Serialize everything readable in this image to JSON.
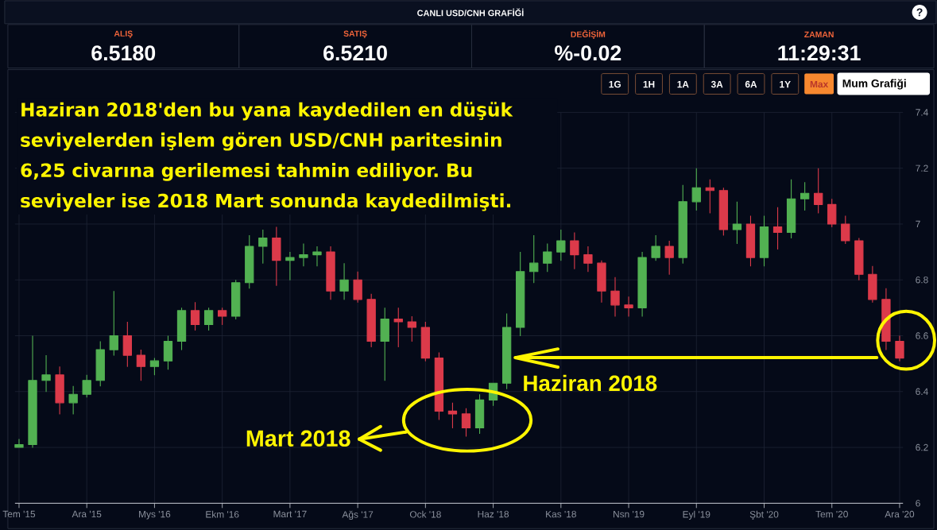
{
  "chart_data": {
    "type": "candlestick",
    "title": "CANLI USD/CNH GRAFİĞİ",
    "categories": [
      "Tem '15",
      null,
      null,
      null,
      null,
      "Ara '15",
      null,
      null,
      null,
      null,
      "Mys '16",
      null,
      null,
      null,
      null,
      "Ekm '16",
      null,
      null,
      null,
      null,
      "Mart '17",
      null,
      null,
      null,
      null,
      "Ağs '17",
      null,
      null,
      null,
      null,
      "Ock '18",
      null,
      null,
      null,
      null,
      "Haz '18",
      null,
      null,
      null,
      null,
      "Kas '18",
      null,
      null,
      null,
      null,
      "Nsn '19",
      null,
      null,
      null,
      null,
      "Eyl '19",
      null,
      null,
      null,
      null,
      "Şbt '20",
      null,
      null,
      null,
      null,
      "Tem '20",
      null,
      null,
      null,
      null,
      "Ara '20"
    ],
    "ohlc": [
      [
        6.2,
        6.23,
        6.2,
        6.21
      ],
      [
        6.21,
        6.6,
        6.2,
        6.44
      ],
      [
        6.44,
        6.53,
        6.4,
        6.46
      ],
      [
        6.46,
        6.49,
        6.32,
        6.36
      ],
      [
        6.36,
        6.42,
        6.32,
        6.39
      ],
      [
        6.39,
        6.46,
        6.38,
        6.44
      ],
      [
        6.44,
        6.58,
        6.42,
        6.55
      ],
      [
        6.55,
        6.76,
        6.53,
        6.6
      ],
      [
        6.6,
        6.65,
        6.49,
        6.53
      ],
      [
        6.53,
        6.55,
        6.44,
        6.49
      ],
      [
        6.49,
        6.52,
        6.46,
        6.51
      ],
      [
        6.51,
        6.6,
        6.48,
        6.58
      ],
      [
        6.58,
        6.7,
        6.55,
        6.69
      ],
      [
        6.69,
        6.72,
        6.62,
        6.64
      ],
      [
        6.64,
        6.7,
        6.62,
        6.69
      ],
      [
        6.69,
        6.7,
        6.64,
        6.67
      ],
      [
        6.67,
        6.8,
        6.66,
        6.79
      ],
      [
        6.79,
        6.96,
        6.77,
        6.92
      ],
      [
        6.92,
        6.98,
        6.86,
        6.95
      ],
      [
        6.95,
        6.99,
        6.78,
        6.87
      ],
      [
        6.87,
        6.9,
        6.8,
        6.88
      ],
      [
        6.88,
        6.93,
        6.85,
        6.89
      ],
      [
        6.89,
        6.92,
        6.85,
        6.9
      ],
      [
        6.9,
        6.92,
        6.73,
        6.76
      ],
      [
        6.76,
        6.86,
        6.73,
        6.8
      ],
      [
        6.8,
        6.83,
        6.72,
        6.73
      ],
      [
        6.73,
        6.75,
        6.56,
        6.58
      ],
      [
        6.58,
        6.7,
        6.44,
        6.66
      ],
      [
        6.66,
        6.7,
        6.56,
        6.65
      ],
      [
        6.65,
        6.67,
        6.58,
        6.63
      ],
      [
        6.63,
        6.65,
        6.51,
        6.52
      ],
      [
        6.52,
        6.54,
        6.3,
        6.33
      ],
      [
        6.33,
        6.36,
        6.27,
        6.32
      ],
      [
        6.32,
        6.34,
        6.24,
        6.27
      ],
      [
        6.27,
        6.39,
        6.25,
        6.37
      ],
      [
        6.37,
        6.43,
        6.35,
        6.43
      ],
      [
        6.43,
        6.68,
        6.41,
        6.63
      ],
      [
        6.63,
        6.9,
        6.6,
        6.83
      ],
      [
        6.83,
        6.96,
        6.79,
        6.86
      ],
      [
        6.86,
        6.93,
        6.83,
        6.9
      ],
      [
        6.9,
        6.98,
        6.87,
        6.94
      ],
      [
        6.94,
        6.97,
        6.84,
        6.89
      ],
      [
        6.89,
        6.92,
        6.83,
        6.86
      ],
      [
        6.86,
        6.87,
        6.72,
        6.76
      ],
      [
        6.76,
        6.81,
        6.67,
        6.71
      ],
      [
        6.71,
        6.74,
        6.67,
        6.7
      ],
      [
        6.7,
        6.9,
        6.67,
        6.88
      ],
      [
        6.88,
        6.96,
        6.87,
        6.92
      ],
      [
        6.92,
        6.94,
        6.82,
        6.88
      ],
      [
        6.88,
        7.14,
        6.86,
        7.08
      ],
      [
        7.08,
        7.2,
        7.05,
        7.13
      ],
      [
        7.13,
        7.16,
        7.04,
        7.12
      ],
      [
        7.12,
        7.13,
        6.96,
        6.98
      ],
      [
        6.98,
        7.08,
        6.93,
        7.0
      ],
      [
        7.0,
        7.03,
        6.85,
        6.88
      ],
      [
        6.88,
        7.03,
        6.85,
        6.99
      ],
      [
        6.99,
        7.06,
        6.91,
        6.97
      ],
      [
        6.97,
        7.16,
        6.95,
        7.09
      ],
      [
        7.09,
        7.15,
        7.05,
        7.11
      ],
      [
        7.11,
        7.2,
        7.04,
        7.07
      ],
      [
        7.07,
        7.09,
        6.99,
        7.0
      ],
      [
        7.0,
        7.03,
        6.93,
        6.94
      ],
      [
        6.94,
        6.95,
        6.8,
        6.82
      ],
      [
        6.82,
        6.85,
        6.72,
        6.73
      ],
      [
        6.73,
        6.77,
        6.55,
        6.58
      ],
      [
        6.58,
        6.6,
        6.51,
        6.52
      ]
    ],
    "colors": [
      "#52b152",
      "#52b152",
      "#52b152",
      "#dc3a4a",
      "#52b152",
      "#52b152",
      "#52b152",
      "#52b152",
      "#dc3a4a",
      "#dc3a4a",
      "#52b152",
      "#52b152",
      "#52b152",
      "#dc3a4a",
      "#52b152",
      "#dc3a4a",
      "#52b152",
      "#52b152",
      "#52b152",
      "#dc3a4a",
      "#52b152",
      "#52b152",
      "#52b152",
      "#dc3a4a",
      "#52b152",
      "#dc3a4a",
      "#dc3a4a",
      "#52b152",
      "#dc3a4a",
      "#dc3a4a",
      "#dc3a4a",
      "#dc3a4a",
      "#dc3a4a",
      "#dc3a4a",
      "#52b152",
      "#52b152",
      "#52b152",
      "#52b152",
      "#52b152",
      "#52b152",
      "#52b152",
      "#dc3a4a",
      "#dc3a4a",
      "#dc3a4a",
      "#dc3a4a",
      "#dc3a4a",
      "#52b152",
      "#52b152",
      "#dc3a4a",
      "#52b152",
      "#52b152",
      "#dc3a4a",
      "#dc3a4a",
      "#52b152",
      "#dc3a4a",
      "#52b152",
      "#dc3a4a",
      "#52b152",
      "#52b152",
      "#dc3a4a",
      "#dc3a4a",
      "#dc3a4a",
      "#dc3a4a",
      "#dc3a4a",
      "#dc3a4a",
      "#dc3a4a"
    ],
    "ylim": [
      6,
      7.4
    ],
    "yticks": [
      6,
      6.2,
      6.4,
      6.6,
      6.8,
      7,
      7.2,
      7.4
    ],
    "grid": true,
    "annotations": [
      "Haziran 2018'den bu yana kaydedilen en düşük seviyelerden işlem gören USD/CNH paritesinin 6,25 civarına gerilemesi tahmin ediliyor. Bu seviyeler ise 2018 Mart sonunda kaydedilmişti.",
      "ALIŞ",
      "6.5180",
      "SATIŞ",
      "6.5210",
      "DEĞİŞİM",
      "%-0.02",
      "ZAMAN",
      "11:29:31",
      "1G",
      "1H",
      "1A",
      "3A",
      "6A",
      "1Y",
      "Max",
      "Mum Grafiği",
      "?",
      "Mart 2018",
      "Haziran 2018"
    ]
  }
}
